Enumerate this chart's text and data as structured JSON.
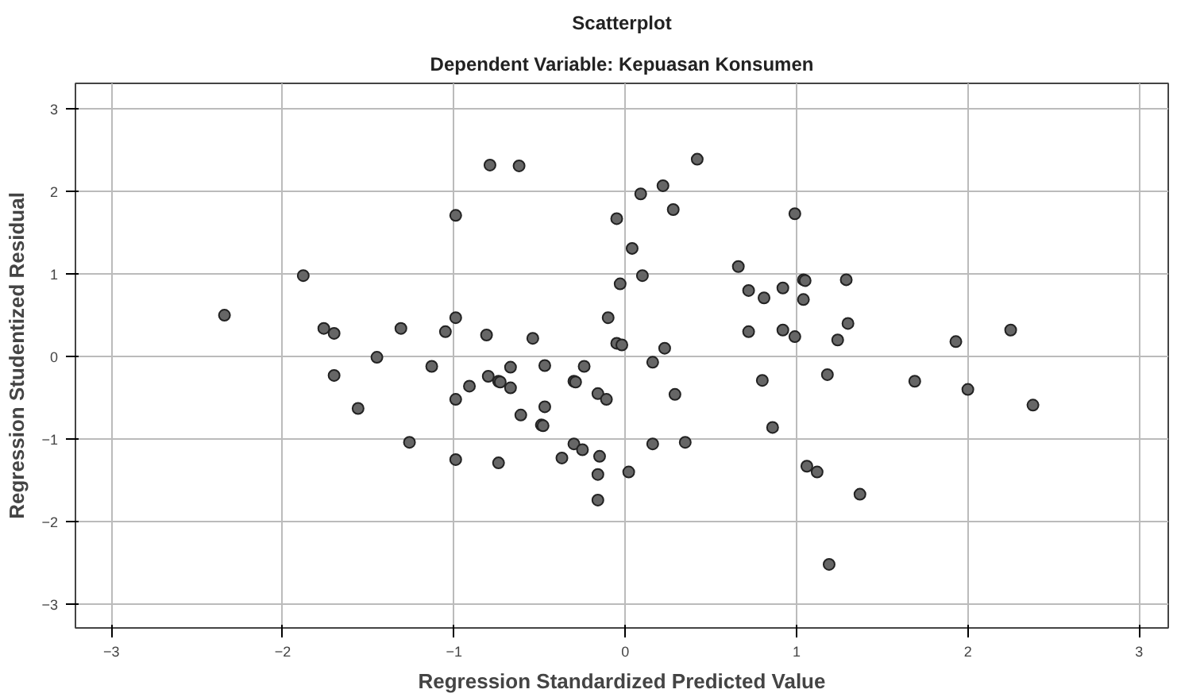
{
  "chart_data": {
    "type": "scatter",
    "title": "Scatterplot",
    "subtitle": "Dependent Variable: Kepuasan Konsumen",
    "xlabel": "Regression Standardized Predicted Value",
    "ylabel": "Regression Studentized Residual",
    "xlim": [
      -3.21,
      3.17
    ],
    "ylim": [
      -3.29,
      3.31
    ],
    "xticks": [
      -3,
      -2,
      -1,
      0,
      1,
      2,
      3
    ],
    "yticks": [
      -3,
      -2,
      -1,
      0,
      1,
      2,
      3
    ],
    "grid": true,
    "marker": "circle",
    "series": [
      {
        "color": "#666666",
        "x": [
          -2.34,
          -1.88,
          -1.76,
          -1.7,
          -1.7,
          -1.56,
          -1.45,
          -1.31,
          -1.26,
          -1.13,
          -1.05,
          -0.99,
          -0.99,
          -0.99,
          -0.99,
          -0.91,
          -0.79,
          -0.62,
          -0.81,
          -0.8,
          -0.74,
          -0.73,
          -0.67,
          -0.67,
          -0.74,
          -0.61,
          -0.54,
          -0.47,
          -0.47,
          -0.49,
          -0.48,
          -0.37,
          -0.3,
          -0.29,
          -0.24,
          -0.3,
          -0.25,
          -0.16,
          -0.11,
          -0.15,
          -0.16,
          -0.16,
          -0.1,
          -0.05,
          -0.03,
          -0.05,
          -0.02,
          0.04,
          0.02,
          0.09,
          0.1,
          0.16,
          0.16,
          0.22,
          0.23,
          0.28,
          0.29,
          0.35,
          0.42,
          0.66,
          0.72,
          0.72,
          0.81,
          0.8,
          0.86,
          0.92,
          0.92,
          0.99,
          0.99,
          1.04,
          1.05,
          1.04,
          1.29,
          1.3,
          1.24,
          1.18,
          1.06,
          1.12,
          1.37,
          1.19,
          1.69,
          1.93,
          2.0,
          2.25,
          2.38
        ],
        "values": [
          0.5,
          0.98,
          0.34,
          0.28,
          -0.23,
          -0.63,
          -0.01,
          0.34,
          -1.04,
          -0.12,
          0.3,
          1.71,
          0.47,
          -0.52,
          -1.25,
          -0.36,
          2.32,
          2.31,
          0.26,
          -0.24,
          -0.3,
          -0.31,
          -0.13,
          -0.38,
          -1.29,
          -0.71,
          0.22,
          -0.11,
          -0.61,
          -0.83,
          -0.84,
          -1.23,
          -0.3,
          -0.31,
          -0.12,
          -1.06,
          -1.13,
          -0.45,
          -0.52,
          -1.21,
          -1.43,
          -1.74,
          0.47,
          1.67,
          0.88,
          0.16,
          0.14,
          1.31,
          -1.4,
          1.97,
          0.98,
          -0.07,
          -1.06,
          2.07,
          0.1,
          1.78,
          -0.46,
          -1.04,
          2.39,
          1.09,
          0.8,
          0.3,
          0.71,
          -0.29,
          -0.86,
          0.83,
          0.32,
          1.73,
          0.24,
          0.93,
          0.92,
          0.69,
          0.93,
          0.4,
          0.2,
          -0.22,
          -1.33,
          -1.4,
          -1.67,
          -2.52,
          -0.3,
          0.18,
          -0.4,
          0.32,
          -0.59
        ]
      }
    ]
  }
}
